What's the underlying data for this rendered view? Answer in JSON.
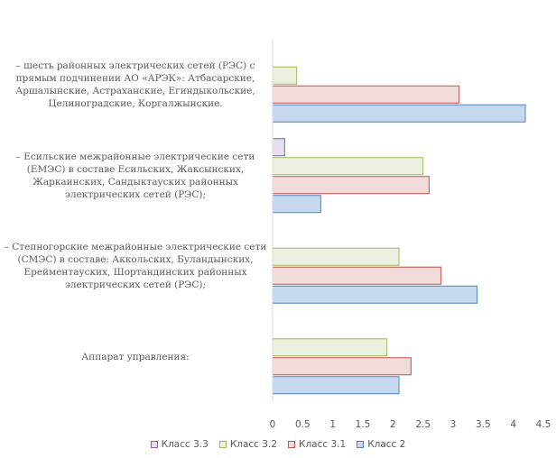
{
  "chart_data": {
    "type": "bar",
    "orientation": "horizontal",
    "categories": [
      "Аппарат управления:",
      "– Степногорские межрайонные электрические сети (СМЭС) в составе: Аккольских, Буландынских, Ерейментауских, Шортандинских районных электрических сетей (РЭС);",
      "– Есильские межрайонные электрические сети (ЕМЭС) в составе Есильских, Жаксынских, Жаркаинских, Сандыктауских районных электрических сетей (РЭС);",
      "– шесть районных электрических сетей (РЭС) с прямым подчинении АО «АРЭК»: Атбасарские, Аршалынские, Астраханские, Егиндыкольские, Целиноградские, Коргалжынские."
    ],
    "category_lines": [
      [
        "Аппарат управления:"
      ],
      [
        "– Степногорские межрайонные электрические сети",
        "(СМЭС) в составе: Аккольских,  Буландынских,",
        "Ерейментауских, Шортандинских районных",
        "электрических сетей (РЭС);"
      ],
      [
        "– Есильские межрайонные электрические сети",
        "(ЕМЭС) в составе Есильских, Жаксынских,",
        "Жаркаинских, Сандыктауских районных",
        "электрических сетей (РЭС);"
      ],
      [
        "– шесть районных электрических сетей (РЭС) с",
        "прямым подчинении  АО «АРЭК»: Атбасарские,",
        "Аршалынские, Астраханские, Егиндыкольские,",
        "Целиноградские, Коргалжынские."
      ]
    ],
    "series": [
      {
        "name": "Класс 2",
        "values": [
          2.1,
          3.4,
          0.8,
          4.2
        ],
        "fill": "#c6d9f1",
        "stroke": "#4f81bd"
      },
      {
        "name": "Класс 3.1",
        "values": [
          2.3,
          2.8,
          2.6,
          3.1
        ],
        "fill": "#f2dcdb",
        "stroke": "#c0504d"
      },
      {
        "name": "Класс 3.2",
        "values": [
          1.9,
          2.1,
          2.5,
          0.4
        ],
        "fill": "#ebf1de",
        "stroke": "#9bbb59"
      },
      {
        "name": "Класс 3.3",
        "values": [
          0,
          0,
          0.2,
          0
        ],
        "fill": "#e5e0ec",
        "stroke": "#8064a2"
      }
    ],
    "legend_order": [
      "Класс 3.3",
      "Класс 3.2",
      "Класс 3.1",
      "Класс 2"
    ],
    "xlim": [
      0,
      4.5
    ],
    "xticks": [
      "0",
      "0.5",
      "1",
      "1.5",
      "2",
      "2.5",
      "3",
      "3.5",
      "4",
      "4.5"
    ],
    "title": "",
    "xlabel": "",
    "ylabel": "",
    "legend_position": "bottom",
    "grid": false
  }
}
